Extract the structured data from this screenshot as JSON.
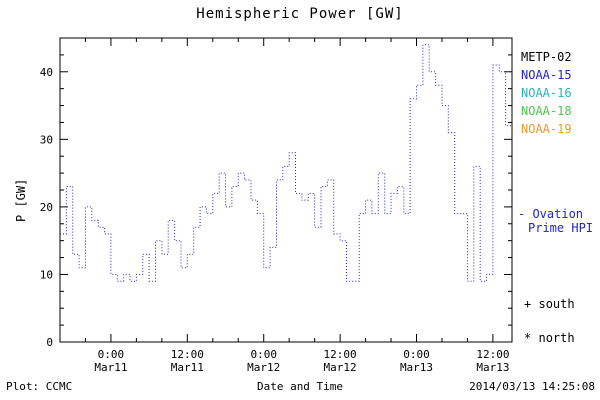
{
  "title": "Hemispheric Power [GW]",
  "y_axis_label": "P [GW]",
  "footer": {
    "plot_source": "Plot: CCMC",
    "xlabel_caption": "Date and Time",
    "timestamp": "2014/03/13 14:25:08"
  },
  "legend": {
    "satellites": [
      {
        "label": "METP-02",
        "color": "#000000"
      },
      {
        "label": "NOAA-15",
        "color": "#2424c8"
      },
      {
        "label": "NOAA-16",
        "color": "#2ab2b2"
      },
      {
        "label": "NOAA-18",
        "color": "#4cc84c"
      },
      {
        "label": "NOAA-19",
        "color": "#f09a28"
      }
    ],
    "line_label_line1": "- Ovation",
    "line_label_line2": "Prime HPI",
    "line_label_color": "#2424c8",
    "markers": [
      {
        "symbol": "+",
        "label": "south"
      },
      {
        "symbol": "*",
        "label": "north"
      }
    ]
  },
  "chart_data": {
    "type": "line",
    "step": true,
    "title": "Hemispheric Power [GW]",
    "xlabel": "Date and Time",
    "ylabel": "P [GW]",
    "series_name": "Ovation Prime HPI",
    "line_color": "#2424c8",
    "line_style": "dotted",
    "ylim": [
      0,
      45
    ],
    "yticks": [
      0,
      10,
      20,
      30,
      40
    ],
    "y_minor_step": 2.5,
    "x_minor_step_hours": 4,
    "xlim_hours": [
      0,
      71
    ],
    "x_start_label": "Mar10 16:00",
    "xticks": [
      {
        "hour": 8,
        "time": "0:00",
        "date": "Mar11"
      },
      {
        "hour": 20,
        "time": "12:00",
        "date": "Mar11"
      },
      {
        "hour": 32,
        "time": "0:00",
        "date": "Mar12"
      },
      {
        "hour": 44,
        "time": "12:00",
        "date": "Mar12"
      },
      {
        "hour": 56,
        "time": "0:00",
        "date": "Mar13"
      },
      {
        "hour": 68,
        "time": "12:00",
        "date": "Mar13"
      }
    ],
    "x_hours": [
      0,
      1,
      2,
      3,
      4,
      5,
      6,
      7,
      8,
      9,
      10,
      11,
      12,
      13,
      14,
      15,
      16,
      17,
      18,
      19,
      20,
      21,
      22,
      23,
      24,
      25,
      26,
      27,
      28,
      29,
      30,
      31,
      32,
      33,
      34,
      35,
      36,
      37,
      38,
      39,
      40,
      41,
      42,
      43,
      44,
      45,
      46,
      47,
      48,
      49,
      50,
      51,
      52,
      53,
      54,
      55,
      56,
      57,
      58,
      59,
      60,
      61,
      62,
      63,
      64,
      65,
      66,
      67,
      68,
      69,
      70
    ],
    "values": [
      16,
      23,
      13,
      11,
      20,
      18,
      17,
      16,
      10,
      9,
      10,
      9,
      10,
      13,
      9,
      15,
      13,
      18,
      15,
      11,
      13,
      17,
      20,
      19,
      22,
      25,
      20,
      23,
      25,
      24,
      21,
      19,
      11,
      14,
      24,
      26,
      28,
      22,
      21,
      22,
      17,
      23,
      24,
      16,
      15,
      9,
      9,
      19,
      21,
      19,
      25,
      19,
      22,
      23,
      19,
      36,
      38,
      44,
      40,
      38,
      35,
      31,
      19,
      19,
      9,
      26,
      9,
      10,
      41,
      40,
      32
    ]
  }
}
